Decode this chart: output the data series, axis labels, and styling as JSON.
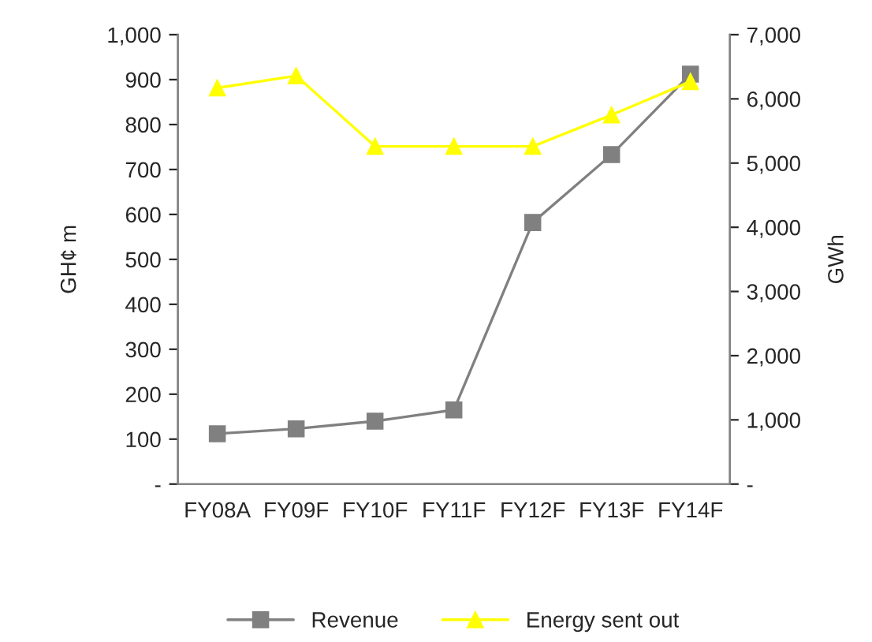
{
  "chart_data": {
    "type": "line",
    "ylabel": "GH¢ m",
    "y2label": "GWh",
    "categories": [
      "FY08A",
      "FY09F",
      "FY10F",
      "FY11F",
      "FY12F",
      "FY13F",
      "FY14F"
    ],
    "series": [
      {
        "name": "Revenue",
        "color": "#808080",
        "marker": "square",
        "values": [
          112,
          123,
          140,
          165,
          582,
          733,
          912
        ]
      },
      {
        "name": "Energy sent out",
        "color": "#ffff00",
        "marker": "triangle",
        "axis": "y2",
        "values": [
          6170,
          6360,
          5260,
          5260,
          5260,
          5750,
          6270
        ]
      }
    ],
    "ylim": [
      0,
      1000
    ],
    "yticks": [
      {
        "value": 0,
        "label": "-"
      },
      {
        "value": 100,
        "label": "100"
      },
      {
        "value": 200,
        "label": "200"
      },
      {
        "value": 300,
        "label": "300"
      },
      {
        "value": 400,
        "label": "400"
      },
      {
        "value": 500,
        "label": "500"
      },
      {
        "value": 600,
        "label": "600"
      },
      {
        "value": 700,
        "label": "700"
      },
      {
        "value": 800,
        "label": "800"
      },
      {
        "value": 900,
        "label": "900"
      },
      {
        "value": 1000,
        "label": "1,000"
      }
    ],
    "y2lim": [
      0,
      7000
    ],
    "y2ticks": [
      {
        "value": 0,
        "label": "-"
      },
      {
        "value": 1000,
        "label": "1,000"
      },
      {
        "value": 2000,
        "label": "2,000"
      },
      {
        "value": 3000,
        "label": "3,000"
      },
      {
        "value": 4000,
        "label": "4,000"
      },
      {
        "value": 5000,
        "label": "5,000"
      },
      {
        "value": 6000,
        "label": "6,000"
      },
      {
        "value": 7000,
        "label": "7,000"
      }
    ],
    "grid": false,
    "legend": "bottom"
  }
}
